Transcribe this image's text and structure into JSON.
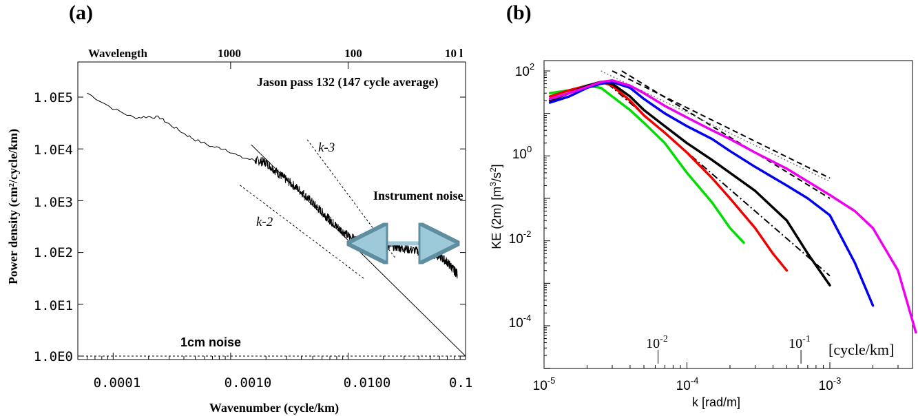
{
  "chart_data": [
    {
      "panel_label": "(a)",
      "type": "line",
      "scale": "log-log",
      "title": "",
      "xlabel": "Wavenumber (cycle/km)",
      "ylabel": "Power density (cm²/cycle/km)",
      "top_axis_label": "Wavelength",
      "top_tick_labels": [
        "1000",
        "100",
        "10 l"
      ],
      "xlim": [
        5e-05,
        0.1
      ],
      "ylim": [
        0.7,
        300000
      ],
      "x_tick_labels": [
        "0.0001",
        "0.0010",
        "0.0100",
        "0.1("
      ],
      "y_tick_labels": [
        "1.0E5",
        "1.0E4",
        "1.0E3",
        "1.0E2",
        "1.0E1",
        "1.0E0"
      ],
      "annotations": {
        "dataset": "Jason pass 132 (147 cycle average)",
        "instrument_noise": "Instrument noise",
        "noise_floor": "1cm noise",
        "k_minus_3": "k-3",
        "k_minus_2": "k-2"
      },
      "series": [
        {
          "style": "solid-noisy",
          "x": [
            6e-05,
            0.0001,
            0.00015,
            0.0002,
            0.00025,
            0.0003,
            0.0004,
            0.0005,
            0.0007,
            0.0009,
            0.0012,
            0.0016,
            0.002,
            0.0025,
            0.003,
            0.004,
            0.005,
            0.006,
            0.007,
            0.008,
            0.01,
            0.012,
            0.015,
            0.02,
            0.025,
            0.03,
            0.04,
            0.05,
            0.06,
            0.07,
            0.08,
            0.085
          ],
          "y": [
            120000,
            60000,
            40000,
            42000,
            40000,
            30000,
            20000,
            15000,
            11000,
            10000,
            7000,
            6000,
            5500,
            3500,
            2500,
            1500,
            900,
            600,
            420,
            320,
            210,
            170,
            150,
            140,
            130,
            120,
            105,
            95,
            85,
            65,
            45,
            38
          ]
        }
      ],
      "reference_lines": [
        {
          "style": "solid",
          "label": "k-3 fit",
          "x": [
            0.0015,
            0.1
          ],
          "y": [
            12000,
            1
          ]
        },
        {
          "style": "dashed",
          "label": "k-3",
          "x": [
            0.0045,
            0.025
          ],
          "y": [
            15000,
            80
          ]
        },
        {
          "style": "dashed",
          "label": "k-2",
          "x": [
            0.0012,
            0.014
          ],
          "y": [
            2000,
            30
          ]
        },
        {
          "style": "dashed",
          "label": "1cm noise",
          "x": [
            5e-05,
            0.1
          ],
          "y": [
            1,
            1
          ]
        }
      ],
      "instrument_noise_arrow": {
        "x": [
          0.01,
          0.08
        ],
        "y": [
          150,
          150
        ],
        "color": "#b9dde8"
      }
    },
    {
      "panel_label": "(b)",
      "type": "line",
      "scale": "log-log",
      "title": "",
      "xlabel": "k [rad/m]",
      "ylabel": "KE (2m) [m³/s²]",
      "xlim": [
        9e-06,
        0.005
      ],
      "ylim": [
        2e-05,
        100
      ],
      "x_tick_labels": [
        "10-5",
        "10-4",
        "10-3"
      ],
      "y_tick_labels": [
        "10^2",
        "10^0",
        "10^-2",
        "10^-4"
      ],
      "secondary_axis": {
        "tick_labels": [
          "10-2",
          "10-1"
        ],
        "unit_label": "[cycle/km]",
        "tick_positions_rad_per_m": [
          6.28e-05,
          0.000628
        ]
      },
      "series": [
        {
          "color": "#00dd00",
          "x": [
            1.1e-05,
            1.5e-05,
            2e-05,
            2.5e-05,
            3e-05,
            4e-05,
            5e-05,
            7e-05,
            0.0001,
            0.00015,
            0.0002,
            0.00025
          ],
          "y": [
            30,
            35,
            45,
            40,
            25,
            12,
            6,
            2,
            0.4,
            0.08,
            0.02,
            0.009
          ]
        },
        {
          "color": "#ee0000",
          "x": [
            1.1e-05,
            1.5e-05,
            2e-05,
            2.5e-05,
            3e-05,
            4e-05,
            5e-05,
            7e-05,
            0.0001,
            0.00015,
            0.0002,
            0.0003,
            0.0004,
            0.0005
          ],
          "y": [
            25,
            35,
            45,
            55,
            45,
            20,
            9,
            3.5,
            1.2,
            0.3,
            0.1,
            0.02,
            0.005,
            0.002
          ]
        },
        {
          "color": "#000000",
          "x": [
            1.1e-05,
            1.5e-05,
            2e-05,
            2.5e-05,
            3e-05,
            4e-05,
            5e-05,
            7e-05,
            0.0001,
            0.00015,
            0.0002,
            0.0003,
            0.0005,
            0.0007,
            0.001
          ],
          "y": [
            20,
            30,
            45,
            55,
            50,
            25,
            12,
            5,
            2,
            0.8,
            0.4,
            0.15,
            0.03,
            0.005,
            0.0009
          ]
        },
        {
          "color": "#0000ee",
          "x": [
            1.1e-05,
            1.5e-05,
            2e-05,
            2.5e-05,
            3e-05,
            4e-05,
            5e-05,
            7e-05,
            0.0001,
            0.00015,
            0.0002,
            0.0003,
            0.0005,
            0.0007,
            0.001,
            0.0015,
            0.002
          ],
          "y": [
            18,
            25,
            40,
            50,
            55,
            40,
            22,
            10,
            5,
            2.5,
            1.3,
            0.55,
            0.2,
            0.1,
            0.04,
            0.003,
            0.0003
          ]
        },
        {
          "color": "#ee00ee",
          "x": [
            1.1e-05,
            1.5e-05,
            2e-05,
            2.5e-05,
            3e-05,
            4e-05,
            5e-05,
            7e-05,
            0.0001,
            0.00015,
            0.0002,
            0.0003,
            0.0005,
            0.0007,
            0.001,
            0.0015,
            0.002,
            0.003,
            0.004
          ],
          "y": [
            22,
            30,
            42,
            55,
            60,
            45,
            30,
            15,
            8,
            4,
            2.5,
            1.2,
            0.5,
            0.25,
            0.12,
            0.05,
            0.02,
            0.002,
            7e-05
          ]
        }
      ],
      "reference_lines": [
        {
          "style": "dashed",
          "x": [
            3.5e-05,
            0.001
          ],
          "y": [
            100,
            0.1
          ]
        },
        {
          "style": "dashed",
          "x": [
            3e-05,
            0.001
          ],
          "y": [
            100,
            0.3
          ]
        },
        {
          "style": "dotted",
          "x": [
            2.5e-05,
            0.001
          ],
          "y": [
            100,
            0.25
          ]
        },
        {
          "style": "dashdot",
          "x": [
            2.8e-05,
            0.001
          ],
          "y": [
            50,
            0.0015
          ]
        }
      ]
    }
  ]
}
